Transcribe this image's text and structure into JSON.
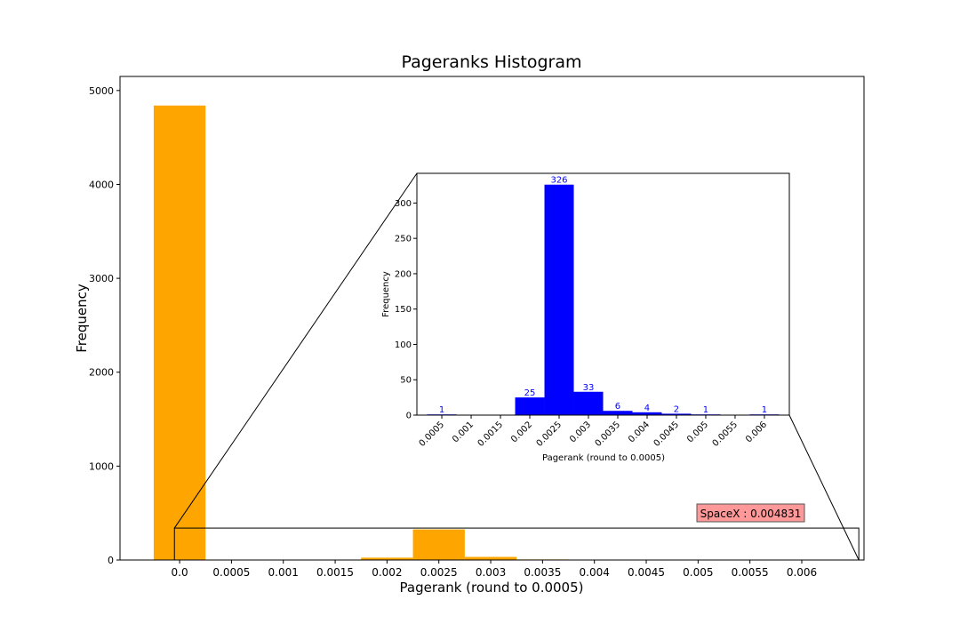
{
  "chart_data": [
    {
      "id": "main",
      "type": "bar",
      "title": "Pageranks Histogram",
      "xlabel": "Pagerank (round to 0.0005)",
      "ylabel": "Frequency",
      "ylim": [
        0,
        5150
      ],
      "xlim": [
        -0.000575,
        0.0066
      ],
      "bar_width": 0.0005,
      "grid": false,
      "bar_color": "#FFA500",
      "x": [
        0.0,
        0.002,
        0.0025,
        0.003,
        0.0035,
        0.004,
        0.0045,
        0.005,
        0.006
      ],
      "values": [
        4840,
        25,
        326,
        33,
        6,
        4,
        2,
        1,
        1
      ],
      "xticks": [
        "0.0",
        "0.0005",
        "0.001",
        "0.0015",
        "0.002",
        "0.0025",
        "0.003",
        "0.0035",
        "0.004",
        "0.0045",
        "0.005",
        "0.0055",
        "0.006"
      ],
      "yticks": [
        "0",
        "1000",
        "2000",
        "3000",
        "4000",
        "5000"
      ],
      "zoom_region": {
        "x0": -5e-05,
        "x1": 0.00655,
        "y0": 0,
        "y1": 340
      },
      "annotation": {
        "text": "SpaceX : 0.004831",
        "color": "#FF9999"
      }
    },
    {
      "id": "inset",
      "type": "bar",
      "title": "",
      "xlabel": "Pagerank (round to 0.0005)",
      "ylabel": "Frequency",
      "ylim": [
        0,
        342
      ],
      "bar_width": 0.0005,
      "grid": false,
      "bar_color": "#0000FF",
      "categories": [
        "0.0005",
        "0.001",
        "0.0015",
        "0.002",
        "0.0025",
        "0.003",
        "0.0035",
        "0.004",
        "0.0045",
        "0.005",
        "0.0055",
        "0.006"
      ],
      "values": [
        1,
        0,
        0,
        25,
        326,
        33,
        6,
        4,
        2,
        1,
        0,
        1
      ],
      "data_labels": [
        "1",
        "",
        "",
        "25",
        "326",
        "33",
        "6",
        "4",
        "2",
        "1",
        "",
        "1"
      ],
      "yticks": [
        "0",
        "50",
        "100",
        "150",
        "200",
        "250",
        "300"
      ]
    }
  ]
}
